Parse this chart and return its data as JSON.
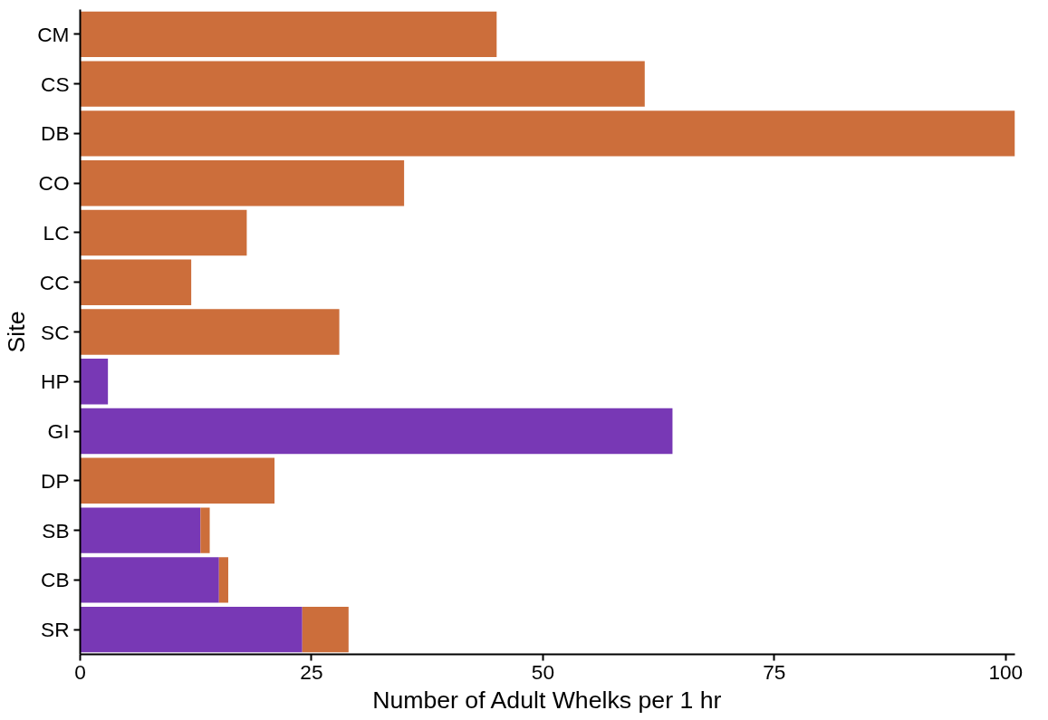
{
  "chart_data": {
    "type": "bar",
    "orientation": "horizontal",
    "stacked": true,
    "xlabel": "Number of Adult Whelks per 1 hr",
    "ylabel": "Site",
    "categories": [
      "CM",
      "CS",
      "DB",
      "CO",
      "LC",
      "CC",
      "SC",
      "HP",
      "GI",
      "DP",
      "SB",
      "CB",
      "SR"
    ],
    "series": [
      {
        "color": "#7838b5",
        "values": [
          null,
          null,
          null,
          null,
          null,
          null,
          null,
          3,
          64,
          null,
          13,
          15,
          24
        ]
      },
      {
        "color": "#cc6e3b",
        "values": [
          45,
          61,
          101,
          35,
          18,
          12,
          28,
          null,
          null,
          21,
          1,
          1,
          5
        ]
      }
    ],
    "xlim": [
      0,
      101
    ],
    "xticks": [
      0,
      25,
      50,
      75,
      100
    ],
    "grid": false
  }
}
